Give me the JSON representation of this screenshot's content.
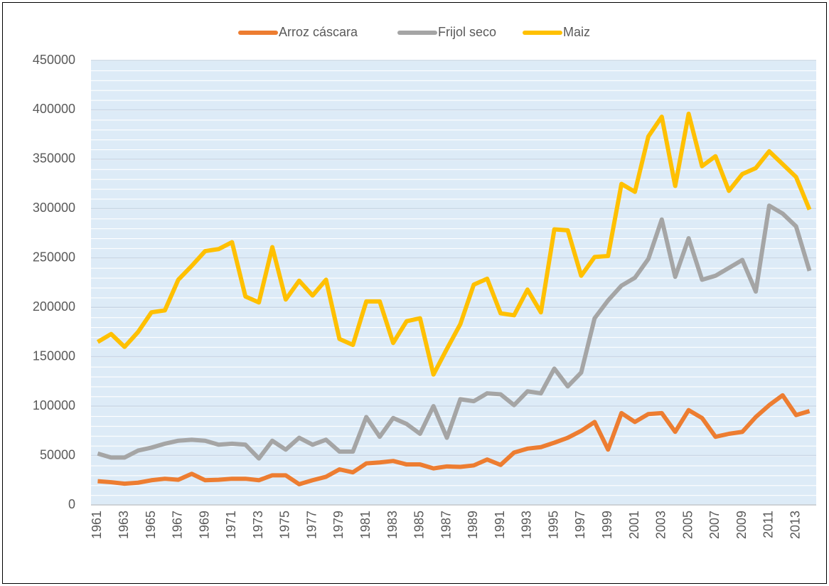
{
  "chart_data": {
    "type": "line",
    "categories": [
      "1961",
      null,
      "1963",
      null,
      "1965",
      null,
      "1967",
      null,
      "1969",
      null,
      "1971",
      null,
      "1973",
      null,
      "1975",
      null,
      "1977",
      null,
      "1979",
      null,
      "1981",
      null,
      "1983",
      null,
      "1985",
      null,
      "1987",
      null,
      "1989",
      null,
      "1991",
      null,
      "1993",
      null,
      "1995",
      null,
      "1997",
      null,
      "1999",
      null,
      "2001",
      null,
      "2003",
      null,
      "2005",
      null,
      "2007",
      null,
      "2009",
      null,
      "2011",
      null,
      "2013",
      null
    ],
    "series": [
      {
        "name": "Arroz cáscara",
        "color": "#ED7D31",
        "values": [
          24000,
          23000,
          21500,
          22500,
          25000,
          26500,
          25500,
          31500,
          25000,
          25500,
          26500,
          26500,
          25000,
          30000,
          30000,
          21000,
          25000,
          28500,
          36000,
          33000,
          42000,
          43000,
          44500,
          41000,
          41000,
          37000,
          39000,
          38500,
          40000,
          46000,
          40500,
          53000,
          57000,
          58500,
          63000,
          68000,
          75000,
          84000,
          56000,
          93000,
          84000,
          92000,
          93000,
          74000,
          96000,
          88000,
          69000,
          72000,
          74000,
          89000,
          101000,
          111000,
          91000,
          95000
        ]
      },
      {
        "name": "Frijol seco",
        "color": "#A5A5A5",
        "values": [
          52000,
          48000,
          48000,
          55000,
          58000,
          62000,
          65000,
          66000,
          65000,
          61000,
          62000,
          61000,
          47000,
          65000,
          56000,
          68000,
          61000,
          66000,
          54000,
          54000,
          89000,
          69000,
          88000,
          82000,
          72000,
          100000,
          68000,
          107000,
          105000,
          113000,
          112000,
          101000,
          115000,
          113000,
          138000,
          120000,
          134000,
          189000,
          207000,
          222000,
          230000,
          249000,
          289000,
          231000,
          270000,
          228000,
          232000,
          240000,
          248000,
          216000,
          303000,
          295000,
          282000,
          237000
        ]
      },
      {
        "name": "Maiz",
        "color": "#FFC000",
        "values": [
          165000,
          173000,
          160000,
          175000,
          195000,
          197000,
          228000,
          242000,
          257000,
          259000,
          266000,
          211000,
          205000,
          261000,
          208000,
          227000,
          212000,
          228000,
          168000,
          162000,
          206000,
          206000,
          164000,
          186000,
          189000,
          132000,
          158000,
          183000,
          223000,
          229000,
          194000,
          192000,
          218000,
          195000,
          279000,
          278000,
          232000,
          251000,
          252000,
          325000,
          317000,
          373000,
          393000,
          323000,
          396000,
          343000,
          353000,
          318000,
          335000,
          341000,
          358000,
          345000,
          332000,
          299000
        ]
      }
    ],
    "ylim": [
      0,
      450000
    ],
    "yticks": [
      0,
      50000,
      100000,
      150000,
      200000,
      250000,
      300000,
      350000,
      400000,
      450000
    ],
    "grid": true,
    "legend": "top"
  }
}
